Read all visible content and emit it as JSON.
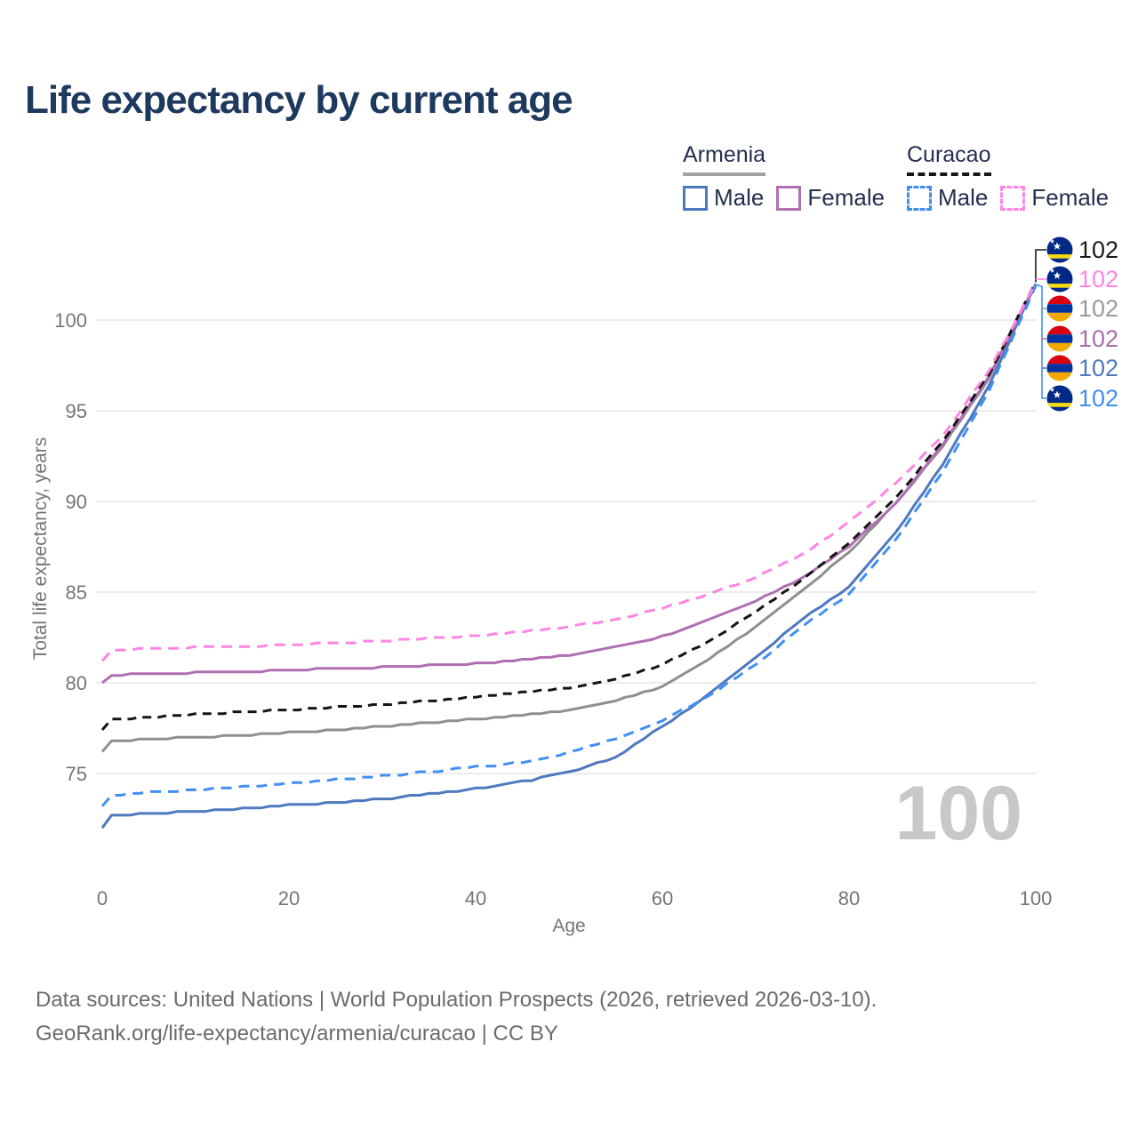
{
  "title": "Life expectancy by current age",
  "watermark": "100",
  "axes": {
    "x": {
      "title": "Age",
      "ticks": [
        0,
        20,
        40,
        60,
        80,
        100
      ]
    },
    "y": {
      "title": "Total life expectancy, years",
      "ticks": [
        75,
        80,
        85,
        90,
        95,
        100
      ]
    }
  },
  "legend": {
    "groups": [
      {
        "name": "Armenia",
        "line_style": "solid",
        "underline_color": "#a3a3a3",
        "items": [
          {
            "label": "Male",
            "color": "#4e79bf",
            "dashed": false
          },
          {
            "label": "Female",
            "color": "#b06fb2",
            "dashed": false
          }
        ]
      },
      {
        "name": "Curacao",
        "line_style": "dashed",
        "underline_color": "#161616",
        "items": [
          {
            "label": "Male",
            "color": "#418ff2",
            "dashed": true
          },
          {
            "label": "Female",
            "color": "#ff85e3",
            "dashed": true
          }
        ]
      }
    ]
  },
  "end_labels": [
    {
      "flag": "curacao",
      "value": "102",
      "color": "#1a1a1a"
    },
    {
      "flag": "curacao",
      "value": "102",
      "color": "#ff85e3"
    },
    {
      "flag": "armenia",
      "value": "102",
      "color": "#9a9a9a"
    },
    {
      "flag": "armenia",
      "value": "102",
      "color": "#a76fa7"
    },
    {
      "flag": "armenia",
      "value": "102",
      "color": "#4e79bf"
    },
    {
      "flag": "curacao",
      "value": "102",
      "color": "#418ff2"
    }
  ],
  "footer": {
    "line1": "Data sources: United Nations | World Population Prospects (2026, retrieved 2026-03-10).",
    "line2": "GeoRank.org/life-expectancy/armenia/curacao | CC BY"
  },
  "chart_data": {
    "type": "line",
    "title": "Life expectancy by current age",
    "xlabel": "Age",
    "ylabel": "Total life expectancy, years",
    "xlim": [
      0,
      100
    ],
    "ylim": [
      72,
      102.5
    ],
    "x_ticks": [
      0,
      20,
      40,
      60,
      80,
      100
    ],
    "y_ticks": [
      75,
      80,
      85,
      90,
      95,
      100
    ],
    "grid": "horizontal",
    "legend_position": "top-right",
    "ages": [
      0,
      1,
      5,
      10,
      15,
      20,
      25,
      30,
      35,
      40,
      45,
      50,
      55,
      60,
      65,
      70,
      75,
      80,
      85,
      90,
      95,
      100
    ],
    "series": [
      {
        "name": "Curacao Both sexes",
        "country": "Curacao",
        "sex": "both",
        "color": "#151515",
        "dashed": true,
        "values": [
          77.4,
          77.95,
          78.1,
          78.25,
          78.4,
          78.5,
          78.65,
          78.8,
          79.0,
          79.2,
          79.45,
          79.7,
          80.2,
          81.0,
          82.3,
          83.9,
          85.7,
          87.7,
          90.2,
          93.3,
          97.0,
          102.1
        ],
        "end_label": "102"
      },
      {
        "name": "Curacao Female",
        "country": "Curacao",
        "sex": "female",
        "color": "#ff85e3",
        "dashed": true,
        "values": [
          81.2,
          81.75,
          81.9,
          81.95,
          82.0,
          82.1,
          82.2,
          82.3,
          82.45,
          82.6,
          82.8,
          83.1,
          83.5,
          84.1,
          84.9,
          85.8,
          87.1,
          88.85,
          91.0,
          93.6,
          97.2,
          102.05
        ],
        "end_label": "102"
      },
      {
        "name": "Armenia Both sexes",
        "country": "Armenia",
        "sex": "both",
        "color": "#8f8f8f",
        "dashed": false,
        "values": [
          76.2,
          76.75,
          76.9,
          77.0,
          77.1,
          77.25,
          77.4,
          77.6,
          77.8,
          78.0,
          78.2,
          78.5,
          79.0,
          79.8,
          81.3,
          83.1,
          85.1,
          87.2,
          89.9,
          93.0,
          96.8,
          102.0
        ],
        "end_label": "102"
      },
      {
        "name": "Armenia Female",
        "country": "Armenia",
        "sex": "female",
        "color": "#b06fb2",
        "dashed": false,
        "values": [
          79.95,
          80.4,
          80.5,
          80.55,
          80.6,
          80.7,
          80.8,
          80.85,
          80.95,
          81.05,
          81.25,
          81.5,
          81.95,
          82.55,
          83.45,
          84.5,
          85.8,
          87.5,
          89.9,
          93.1,
          96.9,
          102.0
        ],
        "end_label": "102"
      },
      {
        "name": "Armenia Male",
        "country": "Armenia",
        "sex": "male",
        "color": "#4e79bf",
        "dashed": false,
        "values": [
          72.0,
          72.65,
          72.8,
          72.9,
          73.05,
          73.25,
          73.4,
          73.6,
          73.85,
          74.15,
          74.55,
          75.05,
          75.9,
          77.6,
          79.35,
          81.4,
          83.5,
          85.3,
          88.3,
          92.0,
          96.4,
          102.0
        ],
        "end_label": "102"
      },
      {
        "name": "Curacao Male",
        "country": "Curacao",
        "sex": "male",
        "color": "#418ff2",
        "dashed": true,
        "values": [
          73.2,
          73.8,
          73.95,
          74.1,
          74.25,
          74.45,
          74.65,
          74.85,
          75.1,
          75.35,
          75.6,
          76.15,
          76.9,
          77.9,
          79.3,
          81.0,
          83.1,
          84.9,
          87.9,
          91.6,
          96.1,
          101.9
        ],
        "end_label": "102"
      }
    ]
  }
}
